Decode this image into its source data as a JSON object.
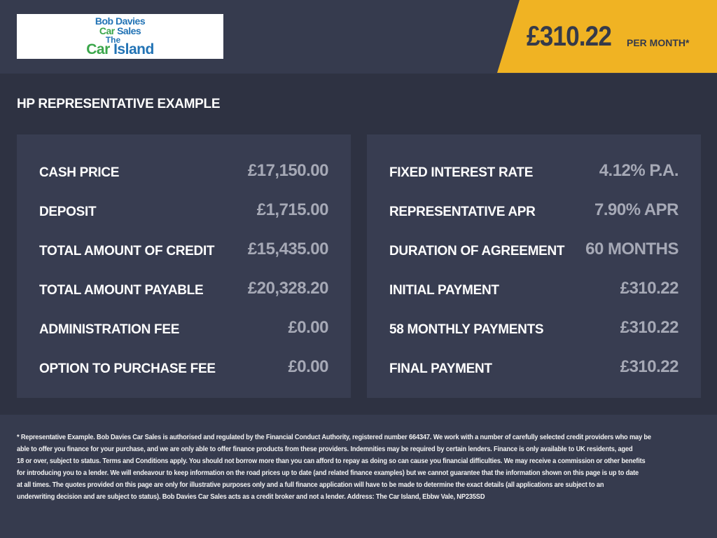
{
  "logo": {
    "line1": "Bob Davies",
    "line2a": "Car",
    "line2b": "Sales",
    "line3": "The",
    "line4a": "Car",
    "line4b": "Island"
  },
  "header": {
    "price": "£310.22",
    "per_month": "PER MONTH*",
    "accent_color": "#f0b323"
  },
  "title": "HP REPRESENTATIVE EXAMPLE",
  "left_panel": [
    {
      "label": "CASH PRICE",
      "value": "£17,150.00"
    },
    {
      "label": "DEPOSIT",
      "value": "£1,715.00"
    },
    {
      "label": "TOTAL AMOUNT OF CREDIT",
      "value": "£15,435.00"
    },
    {
      "label": "TOTAL AMOUNT PAYABLE",
      "value": "£20,328.20"
    },
    {
      "label": "ADMINISTRATION FEE",
      "value": "£0.00"
    },
    {
      "label": "OPTION TO PURCHASE FEE",
      "value": "£0.00"
    }
  ],
  "right_panel": [
    {
      "label": "FIXED INTEREST RATE",
      "value": "4.12% P.A."
    },
    {
      "label": "REPRESENTATIVE APR",
      "value": "7.90% APR"
    },
    {
      "label": "DURATION OF AGREEMENT",
      "value": "60 MONTHS"
    },
    {
      "label": "INITIAL PAYMENT",
      "value": "£310.22"
    },
    {
      "label": "58 MONTHLY PAYMENTS",
      "value": "£310.22"
    },
    {
      "label": "FINAL PAYMENT",
      "value": "£310.22"
    }
  ],
  "disclaimer": [
    "* Representative Example. Bob Davies Car Sales is authorised and regulated by the Financial Conduct Authority, registered number 664347. We work with a number of carefully selected credit providers who may be",
    "able to offer you finance for your purchase, and we are only able to offer finance products from these providers. Indemnities may be required by certain lenders. Finance is only available to UK residents, aged",
    "18 or over, subject to status. Terms and Conditions apply. You should not borrow more than you can afford to repay as doing so can cause you financial difficulties. We may receive a commission or other benefits",
    "for introducing you to a lender. We will endeavour to keep information on the road prices up to date (and related finance examples) but we cannot guarantee that the information shown on this page is up to date",
    "at all times. The quotes provided on this page are only for illustrative purposes only and a full finance application will have to be made to determine the exact details (all applications are subject to an",
    "underwriting decision and are subject to status). Bob Davies Car Sales acts as a credit broker and not a lender. Address: The Car Island, Ebbw Vale, NP235SD"
  ]
}
